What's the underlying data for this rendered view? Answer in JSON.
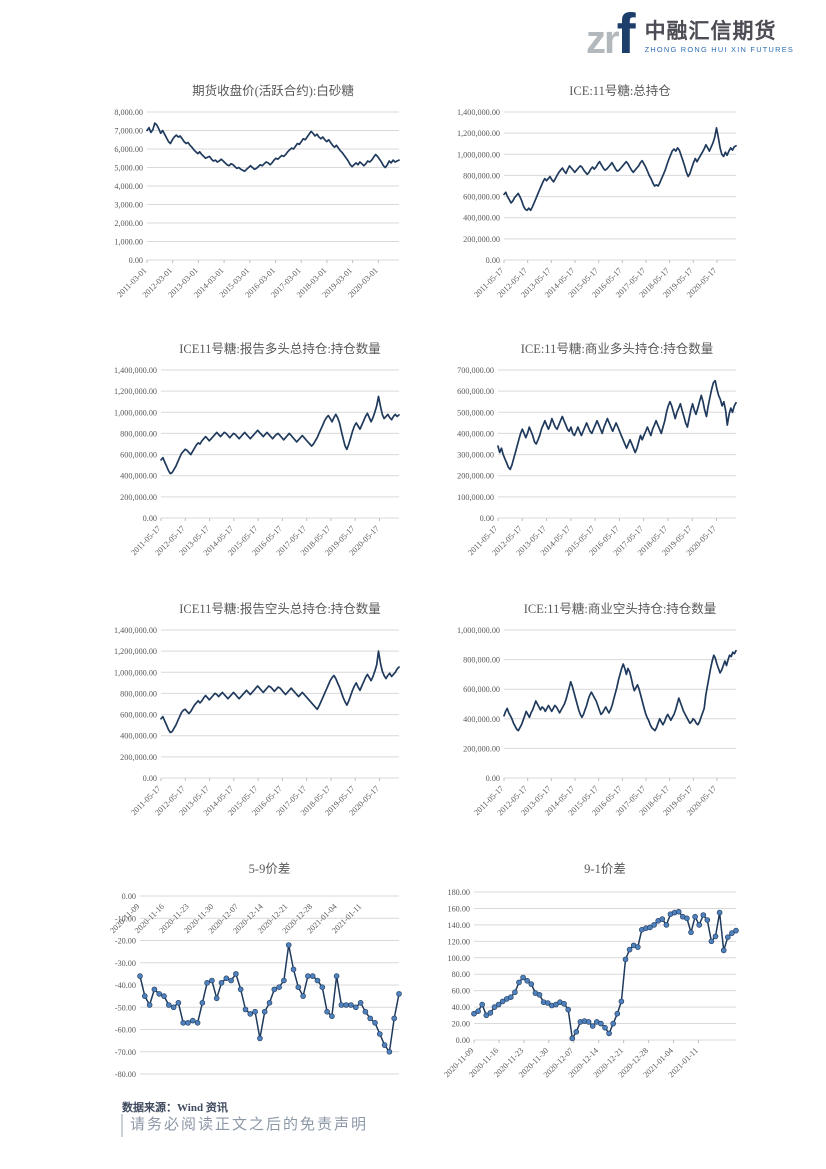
{
  "logo": {
    "zr": "zr",
    "f": "f",
    "cn": "中融汇信期货",
    "en": "ZHONG RONG HUI XIN FUTURES"
  },
  "footer": {
    "source_label": "数据来源：Wind 资讯",
    "disclaimer": "请务必阅读正文之后的免责声明"
  },
  "colors": {
    "line": "#1f3a5c",
    "marker": "#4f81bd",
    "grid": "#d9d9d9",
    "tick_text": "#595959",
    "title_text": "#595959",
    "axis_tick": "#bfbfbf"
  },
  "chart_data": [
    {
      "type": "line",
      "title": "期货收盘价(活跃合约):白砂糖",
      "ylabel": "",
      "xlabel": "",
      "ylim": [
        0,
        8000
      ],
      "ystep": 1000,
      "x_tick_labels": [
        "2011-03-01",
        "2012-03-01",
        "2013-03-01",
        "2014-03-01",
        "2015-03-01",
        "2016-03-01",
        "2017-03-01",
        "2018-03-01",
        "2019-03-01",
        "2020-03-01"
      ],
      "markers": false,
      "x_labels_position": "bottom",
      "values": [
        7000,
        7150,
        6900,
        7050,
        7400,
        7300,
        7100,
        6850,
        7000,
        6800,
        6600,
        6400,
        6300,
        6500,
        6650,
        6750,
        6650,
        6700,
        6550,
        6400,
        6300,
        6350,
        6200,
        6100,
        5950,
        5850,
        5750,
        5850,
        5700,
        5600,
        5500,
        5550,
        5600,
        5450,
        5350,
        5400,
        5300,
        5350,
        5450,
        5350,
        5250,
        5150,
        5100,
        5200,
        5150,
        5050,
        4950,
        5000,
        4900,
        4850,
        4800,
        4900,
        5000,
        5100,
        5000,
        4900,
        4950,
        5050,
        5150,
        5100,
        5200,
        5300,
        5250,
        5150,
        5250,
        5400,
        5500,
        5450,
        5550,
        5650,
        5600,
        5700,
        5850,
        5950,
        6050,
        6000,
        6150,
        6300,
        6250,
        6400,
        6550,
        6500,
        6650,
        6800,
        6950,
        6850,
        6700,
        6800,
        6650,
        6550,
        6650,
        6500,
        6400,
        6500,
        6350,
        6200,
        6100,
        6200,
        6050,
        5900,
        5800,
        5650,
        5500,
        5350,
        5150,
        5050,
        5150,
        5250,
        5150,
        5300,
        5200,
        5100,
        5200,
        5350,
        5300,
        5400,
        5550,
        5700,
        5600,
        5450,
        5300,
        5100,
        5000,
        5150,
        5350,
        5250,
        5400,
        5300,
        5350,
        5400
      ]
    },
    {
      "type": "line",
      "title": "ICE:11号糖:总持仓",
      "ylabel": "",
      "xlabel": "",
      "ylim": [
        0,
        1400000
      ],
      "ystep": 200000,
      "x_tick_labels": [
        "2011-05-17",
        "2012-05-17",
        "2013-05-17",
        "2014-05-17",
        "2015-05-17",
        "2016-05-17",
        "2017-05-17",
        "2018-05-17",
        "2019-05-17",
        "2020-05-17"
      ],
      "markers": false,
      "x_labels_position": "bottom",
      "values": [
        620000,
        640000,
        600000,
        570000,
        540000,
        560000,
        590000,
        610000,
        630000,
        600000,
        560000,
        510000,
        480000,
        470000,
        490000,
        470000,
        500000,
        540000,
        580000,
        620000,
        660000,
        700000,
        740000,
        770000,
        750000,
        770000,
        790000,
        760000,
        740000,
        770000,
        800000,
        830000,
        850000,
        870000,
        840000,
        820000,
        860000,
        890000,
        870000,
        850000,
        830000,
        850000,
        870000,
        890000,
        880000,
        850000,
        830000,
        810000,
        830000,
        860000,
        880000,
        860000,
        880000,
        910000,
        930000,
        900000,
        870000,
        850000,
        860000,
        880000,
        900000,
        920000,
        890000,
        860000,
        840000,
        850000,
        870000,
        890000,
        910000,
        930000,
        910000,
        880000,
        850000,
        830000,
        850000,
        870000,
        890000,
        920000,
        940000,
        910000,
        880000,
        840000,
        800000,
        770000,
        730000,
        700000,
        710000,
        700000,
        730000,
        770000,
        810000,
        850000,
        900000,
        950000,
        990000,
        1030000,
        1050000,
        1030000,
        1060000,
        1040000,
        990000,
        940000,
        890000,
        830000,
        790000,
        820000,
        870000,
        920000,
        960000,
        930000,
        960000,
        990000,
        1020000,
        1050000,
        1090000,
        1060000,
        1030000,
        1070000,
        1110000,
        1160000,
        1250000,
        1160000,
        1060000,
        1000000,
        980000,
        1020000,
        990000,
        1030000,
        1060000,
        1040000,
        1070000,
        1080000
      ]
    },
    {
      "type": "line",
      "title": "ICE11号糖:报告多头总持仓:持仓数量",
      "ylabel": "",
      "xlabel": "",
      "ylim": [
        0,
        1400000
      ],
      "ystep": 200000,
      "x_tick_labels": [
        "2011-05-17",
        "2012-05-17",
        "2013-05-17",
        "2014-05-17",
        "2015-05-17",
        "2016-05-17",
        "2017-05-17",
        "2018-05-17",
        "2019-05-17",
        "2020-05-17"
      ],
      "markers": false,
      "x_labels_position": "bottom",
      "values": [
        550000,
        570000,
        530000,
        490000,
        450000,
        420000,
        430000,
        460000,
        490000,
        530000,
        570000,
        610000,
        630000,
        650000,
        640000,
        620000,
        600000,
        630000,
        660000,
        690000,
        710000,
        700000,
        730000,
        750000,
        770000,
        750000,
        730000,
        750000,
        770000,
        790000,
        810000,
        790000,
        770000,
        790000,
        810000,
        800000,
        780000,
        760000,
        780000,
        800000,
        790000,
        770000,
        750000,
        770000,
        790000,
        810000,
        790000,
        770000,
        750000,
        770000,
        790000,
        810000,
        830000,
        810000,
        790000,
        770000,
        790000,
        810000,
        790000,
        770000,
        750000,
        770000,
        790000,
        800000,
        780000,
        760000,
        740000,
        760000,
        780000,
        800000,
        780000,
        760000,
        740000,
        720000,
        740000,
        760000,
        780000,
        760000,
        740000,
        720000,
        700000,
        680000,
        700000,
        730000,
        760000,
        800000,
        840000,
        880000,
        920000,
        950000,
        970000,
        940000,
        910000,
        950000,
        980000,
        950000,
        900000,
        820000,
        750000,
        680000,
        650000,
        700000,
        760000,
        820000,
        870000,
        900000,
        870000,
        840000,
        880000,
        920000,
        960000,
        990000,
        950000,
        910000,
        950000,
        1000000,
        1060000,
        1150000,
        1060000,
        980000,
        940000,
        960000,
        980000,
        950000,
        930000,
        960000,
        980000,
        960000,
        975000
      ]
    },
    {
      "type": "line",
      "title": "ICE:11号糖:商业多头持仓:持仓数量",
      "ylabel": "",
      "xlabel": "",
      "ylim": [
        0,
        700000
      ],
      "ystep": 100000,
      "x_tick_labels": [
        "2011-05-17",
        "2012-05-17",
        "2013-05-17",
        "2014-05-17",
        "2015-05-17",
        "2016-05-17",
        "2017-05-17",
        "2018-05-17",
        "2019-05-17",
        "2020-05-17"
      ],
      "markers": false,
      "x_labels_position": "bottom",
      "values": [
        340000,
        310000,
        330000,
        300000,
        280000,
        260000,
        240000,
        230000,
        250000,
        280000,
        310000,
        340000,
        370000,
        400000,
        420000,
        400000,
        380000,
        400000,
        430000,
        410000,
        390000,
        360000,
        350000,
        370000,
        390000,
        420000,
        440000,
        460000,
        440000,
        420000,
        440000,
        470000,
        450000,
        430000,
        420000,
        440000,
        460000,
        480000,
        460000,
        440000,
        420000,
        410000,
        430000,
        400000,
        390000,
        410000,
        430000,
        410000,
        390000,
        410000,
        430000,
        450000,
        430000,
        410000,
        400000,
        420000,
        440000,
        460000,
        440000,
        420000,
        400000,
        430000,
        450000,
        470000,
        450000,
        430000,
        410000,
        430000,
        450000,
        430000,
        410000,
        390000,
        370000,
        350000,
        330000,
        350000,
        370000,
        350000,
        330000,
        310000,
        330000,
        360000,
        390000,
        370000,
        390000,
        410000,
        430000,
        410000,
        390000,
        420000,
        440000,
        460000,
        440000,
        420000,
        400000,
        430000,
        460000,
        500000,
        530000,
        550000,
        530000,
        500000,
        470000,
        500000,
        520000,
        540000,
        510000,
        480000,
        450000,
        430000,
        470000,
        510000,
        540000,
        510000,
        490000,
        520000,
        550000,
        580000,
        550000,
        510000,
        480000,
        530000,
        570000,
        610000,
        640000,
        650000,
        610000,
        580000,
        560000,
        530000,
        550000,
        510000,
        440000,
        490000,
        520000,
        500000,
        530000,
        545000
      ]
    },
    {
      "type": "line",
      "title": "ICE11号糖:报告空头总持仓:持仓数量",
      "ylabel": "",
      "xlabel": "",
      "ylim": [
        0,
        1400000
      ],
      "ystep": 200000,
      "x_tick_labels": [
        "2011-05-17",
        "2012-05-17",
        "2013-05-17",
        "2014-05-17",
        "2015-05-17",
        "2016-05-17",
        "2017-05-17",
        "2018-05-17",
        "2019-05-17",
        "2020-05-17"
      ],
      "markers": false,
      "x_labels_position": "bottom",
      "values": [
        560000,
        580000,
        540000,
        500000,
        460000,
        430000,
        440000,
        470000,
        500000,
        540000,
        580000,
        620000,
        640000,
        650000,
        630000,
        610000,
        630000,
        660000,
        690000,
        710000,
        730000,
        710000,
        730000,
        760000,
        780000,
        760000,
        740000,
        760000,
        780000,
        800000,
        790000,
        770000,
        790000,
        810000,
        790000,
        770000,
        750000,
        770000,
        790000,
        810000,
        790000,
        770000,
        750000,
        770000,
        790000,
        810000,
        830000,
        810000,
        790000,
        810000,
        830000,
        850000,
        870000,
        850000,
        830000,
        810000,
        830000,
        850000,
        870000,
        860000,
        840000,
        820000,
        840000,
        860000,
        850000,
        830000,
        810000,
        790000,
        810000,
        830000,
        850000,
        830000,
        810000,
        790000,
        770000,
        790000,
        810000,
        790000,
        770000,
        750000,
        730000,
        710000,
        690000,
        670000,
        650000,
        680000,
        720000,
        760000,
        800000,
        840000,
        880000,
        920000,
        950000,
        970000,
        940000,
        900000,
        860000,
        810000,
        760000,
        720000,
        690000,
        730000,
        780000,
        830000,
        870000,
        900000,
        860000,
        830000,
        870000,
        910000,
        950000,
        980000,
        950000,
        920000,
        960000,
        1010000,
        1070000,
        1200000,
        1090000,
        1010000,
        970000,
        940000,
        970000,
        990000,
        960000,
        980000,
        1000000,
        1030000,
        1050000
      ]
    },
    {
      "type": "line",
      "title": "ICE:11号糖:商业空头持仓:持仓数量",
      "ylabel": "",
      "xlabel": "",
      "ylim": [
        0,
        1000000
      ],
      "ystep": 200000,
      "x_tick_labels": [
        "2011-05-17",
        "2012-05-17",
        "2013-05-17",
        "2014-05-17",
        "2015-05-17",
        "2016-05-17",
        "2017-05-17",
        "2018-05-17",
        "2019-05-17",
        "2020-05-17"
      ],
      "markers": false,
      "x_labels_position": "bottom",
      "values": [
        420000,
        450000,
        470000,
        440000,
        420000,
        400000,
        370000,
        350000,
        330000,
        320000,
        340000,
        360000,
        390000,
        420000,
        450000,
        430000,
        410000,
        440000,
        460000,
        490000,
        520000,
        500000,
        480000,
        460000,
        480000,
        470000,
        450000,
        470000,
        490000,
        470000,
        450000,
        470000,
        490000,
        480000,
        460000,
        440000,
        460000,
        480000,
        500000,
        530000,
        570000,
        610000,
        650000,
        620000,
        580000,
        540000,
        500000,
        460000,
        430000,
        410000,
        430000,
        460000,
        490000,
        530000,
        560000,
        580000,
        560000,
        540000,
        520000,
        490000,
        460000,
        430000,
        440000,
        460000,
        480000,
        460000,
        440000,
        460000,
        490000,
        530000,
        570000,
        610000,
        660000,
        700000,
        740000,
        770000,
        740000,
        700000,
        740000,
        720000,
        680000,
        630000,
        590000,
        610000,
        630000,
        600000,
        560000,
        520000,
        480000,
        440000,
        410000,
        390000,
        360000,
        340000,
        330000,
        320000,
        340000,
        370000,
        400000,
        380000,
        360000,
        380000,
        410000,
        430000,
        410000,
        390000,
        410000,
        430000,
        460000,
        500000,
        540000,
        510000,
        480000,
        450000,
        430000,
        410000,
        390000,
        370000,
        380000,
        400000,
        390000,
        370000,
        360000,
        380000,
        410000,
        440000,
        470000,
        560000,
        620000,
        680000,
        740000,
        790000,
        830000,
        810000,
        770000,
        740000,
        710000,
        730000,
        760000,
        790000,
        760000,
        800000,
        830000,
        820000,
        850000,
        840000,
        860000
      ]
    },
    {
      "type": "line",
      "title": "5-9价差",
      "ylabel": "",
      "xlabel": "",
      "ylim": [
        -80,
        0
      ],
      "ystep": 10,
      "x_tick_labels": [
        "2020-11-09",
        "2020-11-16",
        "2020-11-23",
        "2020-11-30",
        "2020-12-07",
        "2020-12-14",
        "2020-12-21",
        "2020-12-28",
        "2021-01-04",
        "2021-01-11"
      ],
      "markers": true,
      "x_labels_position": "top",
      "values": [
        -36,
        -45,
        -49,
        -42,
        -44,
        -45,
        -49,
        -50,
        -48,
        -57,
        -57,
        -56,
        -57,
        -48,
        -39,
        -38,
        -46,
        -39,
        -37,
        -38,
        -35,
        -42,
        -51,
        -53,
        -52,
        -64,
        -52,
        -48,
        -42,
        -41,
        -38,
        -22,
        -33,
        -41,
        -45,
        -36,
        -36,
        -38,
        -41,
        -52,
        -54,
        -36,
        -49,
        -49,
        -49,
        -50,
        -48,
        -52,
        -55,
        -57,
        -62,
        -67,
        -70,
        -55,
        -44
      ]
    },
    {
      "type": "line",
      "title": "9-1价差",
      "ylabel": "",
      "xlabel": "",
      "ylim": [
        0,
        180
      ],
      "ystep": 20,
      "x_tick_labels": [
        "2020-11-09",
        "2020-11-16",
        "2020-11-23",
        "2020-11-30",
        "2020-12-07",
        "2020-12-14",
        "2020-12-21",
        "2020-12-28",
        "2021-01-04",
        "2021-01-11"
      ],
      "markers": true,
      "x_labels_position": "bottom",
      "values": [
        32,
        35,
        43,
        30,
        33,
        40,
        43,
        47,
        50,
        52,
        58,
        70,
        76,
        72,
        68,
        57,
        55,
        46,
        45,
        42,
        43,
        46,
        44,
        37,
        2,
        10,
        22,
        23,
        22,
        17,
        22,
        20,
        15,
        8,
        20,
        32,
        47,
        98,
        110,
        115,
        113,
        134,
        136,
        137,
        140,
        145,
        147,
        140,
        153,
        155,
        156,
        150,
        148,
        131,
        150,
        140,
        152,
        146,
        120,
        126,
        155,
        109,
        125,
        130,
        133
      ]
    }
  ]
}
